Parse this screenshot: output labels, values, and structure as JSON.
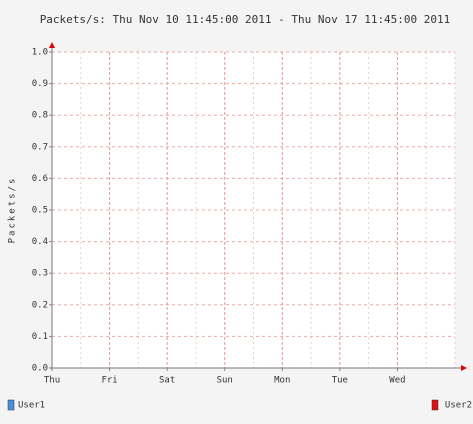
{
  "chart_data": {
    "type": "line",
    "title": "Packets/s: Thu Nov 10 11:45:00 2011 - Thu Nov 17 11:45:00 2011",
    "y_label": "Packets/s",
    "categories": [
      "Thu",
      "Fri",
      "Sat",
      "Sun",
      "Mon",
      "Tue",
      "Wed"
    ],
    "ylim": [
      0,
      1
    ],
    "yticks": [
      {
        "value": 0,
        "label": "0.0"
      },
      0.1,
      0.2,
      0.3,
      0.4,
      0.5,
      0.6,
      0.7,
      0.8,
      0.9,
      {
        "value": 1,
        "label": "1.0"
      }
    ],
    "grid": true,
    "legend": [
      {
        "name": "User1",
        "color": "#4a90d9"
      },
      {
        "name": "User2",
        "color": "#dd1111"
      }
    ]
  }
}
